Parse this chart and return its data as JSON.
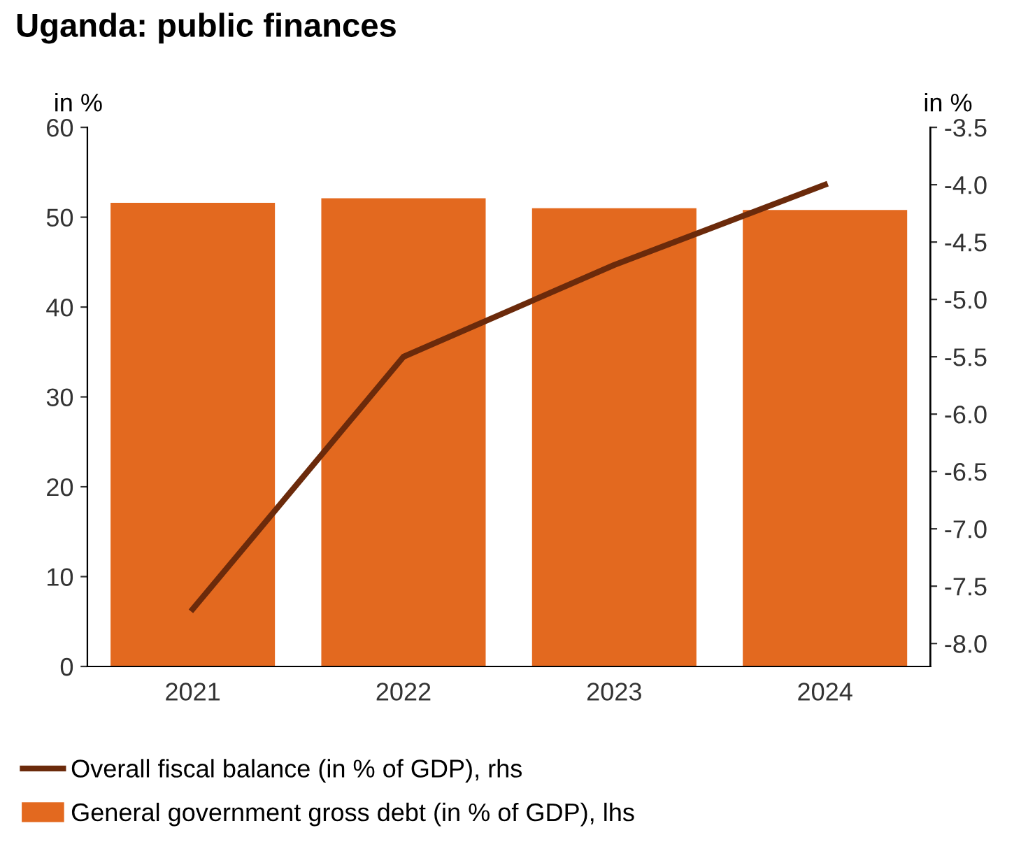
{
  "chart_data": {
    "type": "bar",
    "title": "Uganda: public finances",
    "ylabel": "in %",
    "y2label": "in %",
    "categories": [
      "2021",
      "2022",
      "2023",
      "2024"
    ],
    "series": [
      {
        "name": "Overall fiscal balance (in % of GDP), rhs",
        "type": "line",
        "axis": "y2",
        "color": "#6b2a0b",
        "values": [
          -7.7,
          -5.5,
          -4.7,
          -4.0
        ]
      },
      {
        "name": "General government gross debt (in % of GDP), lhs",
        "color": "#e3691f",
        "values": [
          51.6,
          52.1,
          51.0,
          50.8
        ]
      }
    ],
    "ylim": [
      0,
      60
    ],
    "yticks": [
      0,
      10,
      20,
      30,
      40,
      50,
      60
    ],
    "y2lim": [
      -8.2,
      -3.5
    ],
    "y2ticks": [
      {
        "value": -8,
        "label": "-8.0"
      },
      -7.5,
      {
        "value": -7,
        "label": "-7.0"
      },
      -6.5,
      {
        "value": -6,
        "label": "-6.0"
      },
      -5.5,
      {
        "value": -5,
        "label": "-5.0"
      },
      -4.5,
      {
        "value": -4,
        "label": "-4.0"
      },
      -3.5
    ],
    "grid": false,
    "legend": "bottom",
    "marker": "none",
    "line_style": "solid"
  }
}
